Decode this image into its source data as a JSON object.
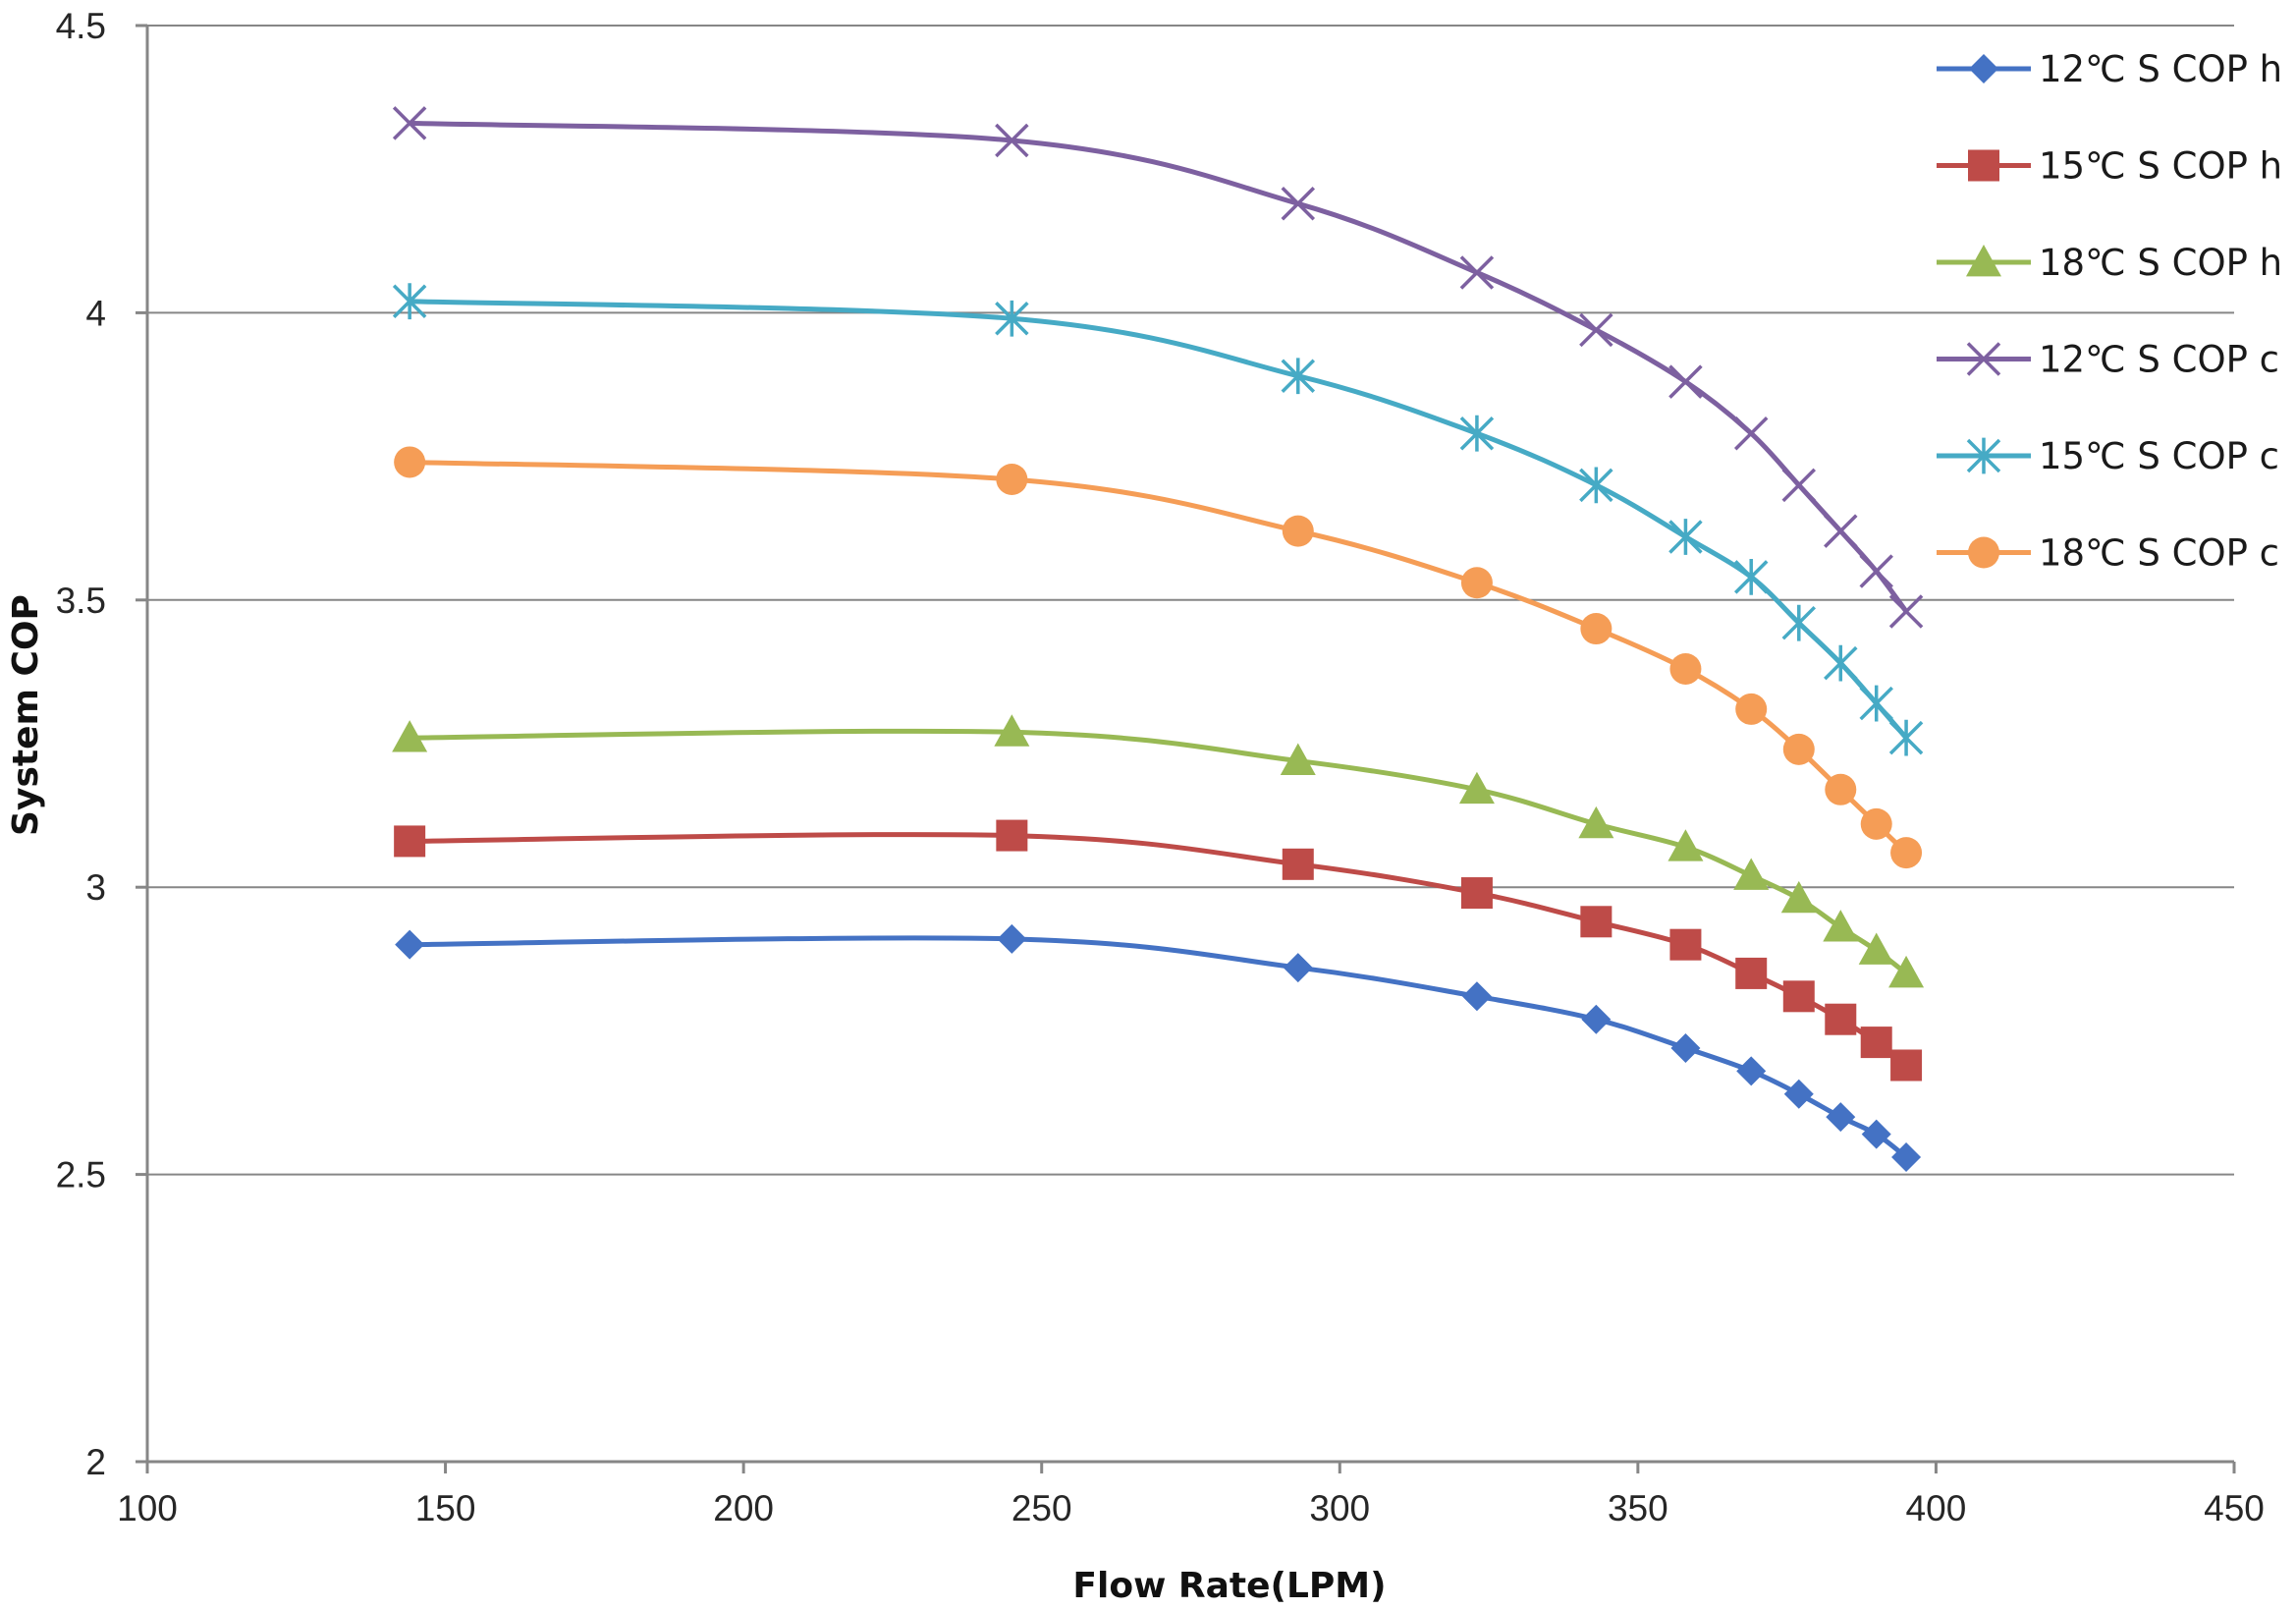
{
  "chart_data": {
    "type": "line",
    "title": "",
    "xlabel": "Flow Rate(LPM)",
    "ylabel": "System COP",
    "xlim": [
      100,
      450
    ],
    "ylim": [
      2,
      4.5
    ],
    "xticks": [
      100,
      150,
      200,
      250,
      300,
      350,
      400,
      450
    ],
    "yticks": [
      2,
      2.5,
      3,
      3.5,
      4,
      4.5
    ],
    "x_tick_labels": [
      "100",
      "150",
      "200",
      "250",
      "300",
      "350",
      "400",
      "450"
    ],
    "y_tick_labels": [
      "2",
      "2.5",
      "3",
      "3.5",
      "4",
      "4.5"
    ],
    "grid": "horizontal",
    "legend_position": "top-right",
    "x": [
      144,
      245,
      293,
      323,
      343,
      358,
      369,
      377,
      384,
      390,
      395
    ],
    "series": [
      {
        "name": "12℃ S COP h",
        "color": "#4472C4",
        "marker": "diamond",
        "values": [
          2.9,
          2.91,
          2.86,
          2.81,
          2.77,
          2.72,
          2.68,
          2.64,
          2.6,
          2.57,
          2.53
        ]
      },
      {
        "name": "15℃ S COP h",
        "color": "#BE4B48",
        "marker": "square",
        "values": [
          3.08,
          3.09,
          3.04,
          2.99,
          2.94,
          2.9,
          2.85,
          2.81,
          2.77,
          2.73,
          2.69
        ]
      },
      {
        "name": "18℃ S COP h",
        "color": "#98B954",
        "marker": "triangle",
        "values": [
          3.26,
          3.27,
          3.22,
          3.17,
          3.11,
          3.07,
          3.02,
          2.98,
          2.93,
          2.89,
          2.85
        ]
      },
      {
        "name": "12℃ S COP c",
        "color": "#7D60A0",
        "marker": "x",
        "values": [
          4.33,
          4.3,
          4.19,
          4.07,
          3.97,
          3.88,
          3.79,
          3.7,
          3.62,
          3.55,
          3.48
        ]
      },
      {
        "name": "15℃ S COP c",
        "color": "#46AAC5",
        "marker": "star",
        "values": [
          4.02,
          3.99,
          3.89,
          3.79,
          3.7,
          3.61,
          3.54,
          3.46,
          3.39,
          3.32,
          3.26
        ]
      },
      {
        "name": "18℃ S COP c",
        "color": "#F59D56",
        "marker": "circle",
        "values": [
          3.74,
          3.71,
          3.62,
          3.53,
          3.45,
          3.38,
          3.31,
          3.24,
          3.17,
          3.11,
          3.06
        ]
      }
    ]
  }
}
